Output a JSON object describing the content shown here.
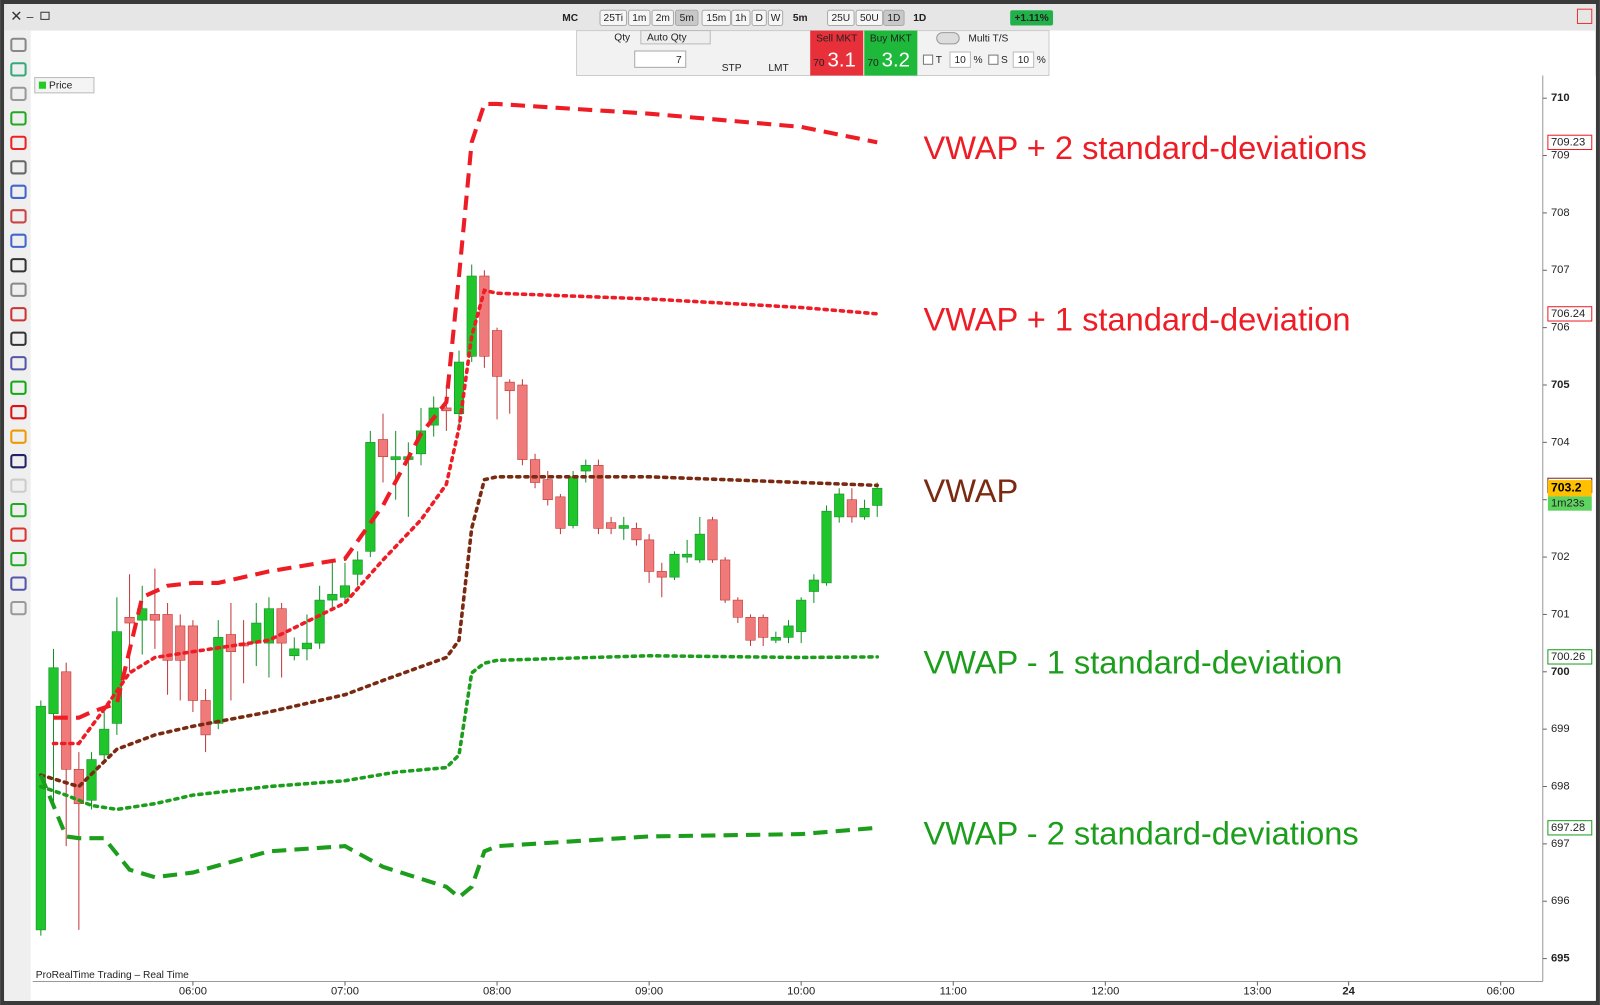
{
  "toolbar": {
    "instrument": "MC",
    "timeframes": [
      "25Ti",
      "1m",
      "2m",
      "5m",
      "15m",
      "1h",
      "D",
      "W"
    ],
    "period": "5m",
    "units": [
      "25U",
      "50U",
      "1D"
    ],
    "range": "1D",
    "change": "+1.11%"
  },
  "order_panel": {
    "qty_label": "Qty",
    "auto_qty": "Auto Qty",
    "qty": "7",
    "stp": "STP",
    "lmt": "LMT",
    "sell_label": "Sell MKT",
    "sell_prefix": "70",
    "sell_price": "3.1",
    "buy_label": "Buy MKT",
    "buy_prefix": "70",
    "buy_price": "3.2",
    "multi": "Multi T/S",
    "t_label": "T",
    "t_value": "10",
    "s_label": "S",
    "s_value": "10",
    "percent": "%"
  },
  "chart_header": "Price",
  "footer": "ProRealTime Trading – Real Time",
  "chart_data": {
    "type": "candlestick",
    "x": [
      300,
      305,
      310,
      315,
      320,
      325,
      330,
      335,
      340,
      345,
      350,
      355,
      360,
      365,
      370,
      375,
      380,
      385,
      390,
      395,
      400,
      405,
      410,
      415,
      420,
      425,
      430,
      435,
      440,
      445,
      450,
      455,
      460,
      465,
      470,
      475,
      480,
      485,
      490,
      495,
      500,
      505,
      510,
      515,
      520,
      525,
      530,
      535,
      540,
      545,
      550,
      555,
      560,
      565,
      570,
      575,
      580,
      585,
      590,
      595,
      600,
      605,
      610,
      615,
      620,
      625,
      630
    ],
    "open": [
      695.5,
      699.27,
      700.0,
      698.3,
      697.76,
      698.55,
      699.1,
      700.95,
      700.9,
      701.0,
      701.0,
      700.8,
      700.8,
      699.5,
      699.1,
      700.65,
      700.5,
      700.5,
      700.5,
      701.1,
      700.28,
      700.4,
      700.5,
      701.25,
      701.3,
      701.7,
      702.1,
      704.05,
      703.7,
      703.7,
      703.8,
      704.3,
      704.6,
      704.5,
      705.5,
      706.9,
      705.95,
      705.05,
      705.0,
      703.7,
      703.35,
      703.05,
      702.55,
      703.5,
      703.6,
      702.6,
      702.5,
      702.5,
      702.3,
      701.75,
      701.65,
      702.0,
      701.95,
      702.65,
      701.95,
      701.25,
      700.95,
      700.95,
      700.55,
      700.6,
      700.7,
      701.4,
      701.55,
      702.7,
      703.0,
      702.7,
      702.9
    ],
    "high": [
      699.5,
      700.4,
      700.16,
      698.6,
      698.6,
      699.3,
      701.3,
      701.7,
      701.5,
      701.8,
      701.2,
      701.0,
      700.9,
      699.7,
      700.9,
      701.2,
      700.9,
      701.2,
      701.3,
      701.2,
      700.6,
      701.0,
      701.5,
      701.9,
      701.9,
      702.1,
      704.2,
      704.5,
      704.2,
      704.0,
      704.6,
      704.8,
      705.0,
      705.6,
      707.1,
      707.0,
      706.0,
      705.1,
      705.1,
      703.8,
      703.5,
      703.1,
      703.5,
      703.7,
      703.7,
      702.7,
      702.7,
      702.6,
      702.4,
      701.9,
      702.1,
      702.3,
      702.7,
      702.7,
      702.0,
      701.3,
      701.0,
      701.0,
      700.7,
      700.9,
      701.3,
      701.7,
      702.9,
      703.2,
      703.2,
      703.0,
      703.3
    ],
    "low": [
      695.4,
      697.7,
      696.96,
      695.5,
      697.6,
      698.4,
      698.9,
      700.0,
      700.3,
      700.4,
      699.6,
      699.5,
      699.3,
      698.6,
      699.0,
      699.5,
      699.8,
      700.1,
      699.9,
      699.9,
      700.2,
      700.2,
      700.4,
      701.1,
      701.2,
      701.5,
      702.0,
      703.3,
      703.0,
      702.7,
      703.6,
      704.1,
      704.2,
      704.3,
      705.4,
      705.3,
      704.4,
      704.5,
      703.6,
      703.2,
      702.9,
      702.4,
      702.5,
      703.3,
      702.4,
      702.4,
      702.3,
      702.2,
      701.55,
      701.3,
      701.6,
      701.9,
      701.9,
      701.9,
      701.2,
      700.85,
      700.45,
      700.45,
      700.5,
      700.5,
      700.5,
      701.2,
      701.5,
      702.6,
      702.6,
      702.65,
      702.7
    ],
    "close": [
      699.4,
      700.07,
      698.3,
      697.7,
      698.47,
      699.0,
      700.7,
      700.85,
      701.1,
      700.9,
      700.2,
      700.2,
      699.5,
      698.9,
      700.6,
      700.35,
      700.45,
      700.85,
      701.1,
      700.5,
      700.4,
      700.5,
      701.25,
      701.35,
      701.5,
      701.95,
      704.0,
      703.75,
      703.75,
      703.75,
      704.2,
      704.6,
      704.55,
      705.4,
      706.9,
      705.5,
      705.15,
      704.9,
      703.7,
      703.3,
      703.0,
      702.5,
      703.4,
      703.6,
      702.5,
      702.5,
      702.55,
      702.3,
      701.75,
      701.65,
      702.05,
      702.05,
      702.4,
      701.95,
      701.25,
      700.95,
      700.55,
      700.6,
      700.6,
      700.8,
      701.25,
      701.6,
      702.8,
      703.1,
      702.7,
      702.85,
      703.2
    ],
    "up_color": "#1fc52b",
    "down_color": "#f07a7a",
    "series": [
      {
        "name": "VWAP + 2 standard-deviations",
        "color": "#ee1c24",
        "style": "dashed",
        "x": [
          305,
          315,
          320,
          330,
          340,
          350,
          360,
          370,
          390,
          420,
          435,
          450,
          460,
          465,
          470,
          475,
          480,
          540,
          600,
          630
        ],
        "values": [
          699.2,
          699.2,
          699.3,
          699.45,
          701.3,
          701.5,
          701.55,
          701.55,
          701.75,
          701.97,
          702.9,
          704.15,
          704.7,
          706.9,
          709.23,
          709.9,
          709.9,
          709.73,
          709.5,
          709.23
        ]
      },
      {
        "name": "VWAP + 1 standard-deviation",
        "color": "#ee1c24",
        "style": "dotted",
        "x": [
          305,
          315,
          325,
          335,
          345,
          360,
          390,
          420,
          435,
          450,
          460,
          465,
          470,
          475,
          480,
          540,
          600,
          630
        ],
        "values": [
          698.75,
          698.75,
          699.35,
          699.98,
          700.25,
          700.35,
          700.55,
          701.2,
          701.95,
          702.65,
          703.27,
          704.25,
          705.85,
          706.65,
          706.6,
          706.5,
          706.35,
          706.24
        ]
      },
      {
        "name": "VWAP",
        "color": "#7b2a12",
        "style": "dotted",
        "x": [
          300,
          315,
          330,
          345,
          360,
          390,
          420,
          435,
          460,
          465,
          470,
          475,
          480,
          540,
          600,
          630
        ],
        "values": [
          698.2,
          698.0,
          698.65,
          698.9,
          699.05,
          699.3,
          699.6,
          699.85,
          700.25,
          700.55,
          702.5,
          703.35,
          703.4,
          703.4,
          703.3,
          703.25
        ]
      },
      {
        "name": "VWAP - 1 standard-deviation",
        "color": "#1c9e1c",
        "style": "dotted",
        "x": [
          300,
          310,
          320,
          330,
          345,
          360,
          390,
          420,
          440,
          460,
          465,
          470,
          475,
          480,
          540,
          600,
          630
        ],
        "values": [
          698.0,
          697.85,
          697.67,
          697.6,
          697.7,
          697.85,
          698.0,
          698.1,
          698.25,
          698.33,
          698.55,
          699.98,
          700.15,
          700.2,
          700.28,
          700.25,
          700.26
        ]
      },
      {
        "name": "VWAP - 2 standard-deviations",
        "color": "#1c9e1c",
        "style": "dashed",
        "x": [
          300,
          310,
          315,
          325,
          335,
          345,
          360,
          390,
          420,
          435,
          460,
          465,
          470,
          475,
          480,
          540,
          600,
          630
        ],
        "values": [
          698.2,
          697.13,
          697.1,
          697.1,
          696.55,
          696.42,
          696.5,
          696.87,
          696.96,
          696.6,
          696.25,
          696.07,
          696.25,
          696.87,
          696.96,
          697.13,
          697.17,
          697.28
        ]
      }
    ],
    "markers": [
      {
        "value": 709.23,
        "color": "#ee1c24"
      },
      {
        "value": 706.24,
        "color": "#ee1c24"
      },
      {
        "value": 703.25,
        "color": "#7b2a12"
      },
      {
        "value": 700.26,
        "color": "#1c9e1c"
      },
      {
        "value": 697.28,
        "color": "#1c9e1c"
      }
    ],
    "current_price": 703.2,
    "current_color": "#ffc000",
    "countdown": "1m23s",
    "countdown_color": "#5fd35f",
    "ylim": [
      694.6,
      710.2
    ],
    "yticks": [
      695,
      696,
      697,
      698,
      699,
      700,
      701,
      702,
      703,
      704,
      705,
      706,
      707,
      708,
      709,
      710
    ],
    "xlim": [
      296.8,
      892.6
    ],
    "xticks": [
      {
        "value": 360,
        "label": "06:00"
      },
      {
        "value": 420,
        "label": "07:00"
      },
      {
        "value": 480,
        "label": "08:00"
      },
      {
        "value": 540,
        "label": "09:00"
      },
      {
        "value": 600,
        "label": "10:00"
      },
      {
        "value": 660,
        "label": "11:00"
      },
      {
        "value": 720,
        "label": "12:00"
      },
      {
        "value": 780,
        "label": "13:00"
      },
      {
        "value": 816,
        "label": "24"
      },
      {
        "value": 876,
        "label": "06:00"
      }
    ]
  }
}
